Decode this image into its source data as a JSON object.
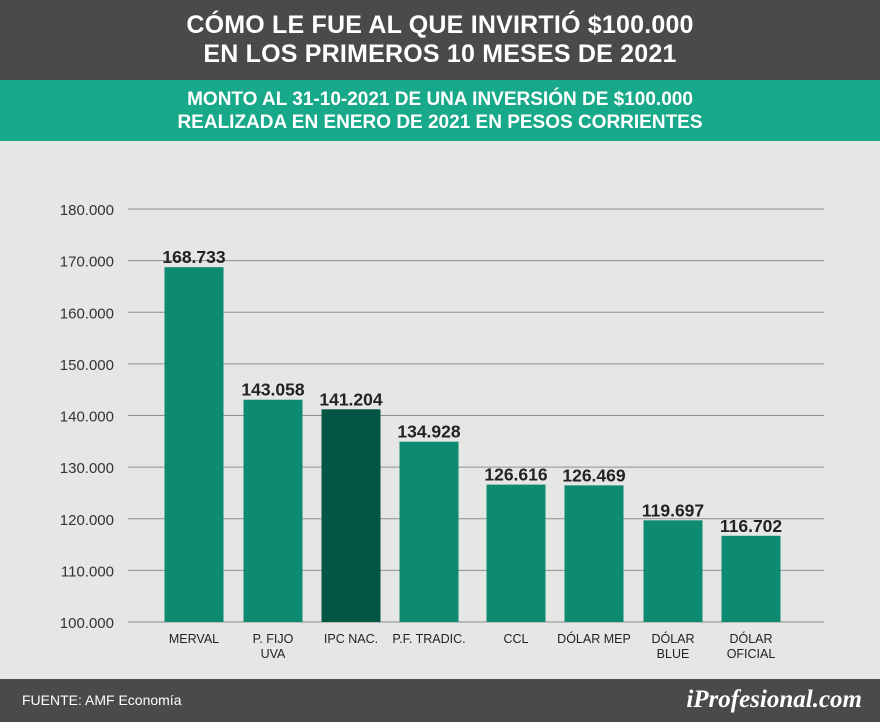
{
  "header": {
    "title_line1": "CÓMO LE FUE AL QUE INVIRTIÓ $100.000",
    "title_line2": "EN LOS PRIMEROS 10 MESES DE 2021"
  },
  "subheader": {
    "line1": "MONTO AL 31-10-2021 DE UNA INVERSIÓN DE $100.000",
    "line2": "REALIZADA EN ENERO DE 2021 EN PESOS CORRIENTES"
  },
  "footer": {
    "source": "FUENTE: AMF Economía",
    "brand": "iProfesional.com"
  },
  "colors": {
    "bar": "#0e8a70",
    "bar_highlight": "#045644",
    "header_bg": "#4a4a4a",
    "subheader_bg": "#17a98a",
    "chart_bg": "#e6e6e5"
  },
  "chart_data": {
    "type": "bar",
    "categories": [
      [
        "MERVAL"
      ],
      [
        "P. FIJO",
        "UVA"
      ],
      [
        "IPC NAC."
      ],
      [
        "P.F. TRADIC."
      ],
      [
        "CCL"
      ],
      [
        "DÓLAR MEP"
      ],
      [
        "DÓLAR",
        "BLUE"
      ],
      [
        "DÓLAR",
        "OFICIAL"
      ]
    ],
    "values": [
      168733,
      143058,
      141204,
      134928,
      126616,
      126469,
      119697,
      116702
    ],
    "value_labels": [
      "168.733",
      "143.058",
      "141.204",
      "134.928",
      "126.616",
      "126.469",
      "119.697",
      "116.702"
    ],
    "highlight_index": 2,
    "ylim": [
      100000,
      180000
    ],
    "yticks": [
      100000,
      110000,
      120000,
      130000,
      140000,
      150000,
      160000,
      170000,
      180000
    ],
    "ytick_labels": [
      "100.000",
      "110.000",
      "120.000",
      "130.000",
      "140.000",
      "150.000",
      "160.000",
      "170.000",
      "180.000"
    ],
    "grid": true,
    "title": "",
    "xlabel": "",
    "ylabel": ""
  }
}
